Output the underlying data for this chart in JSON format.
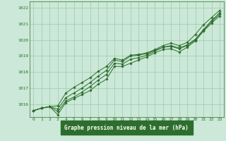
{
  "xlabel": "Graphe pression niveau de la mer (hPa)",
  "xlim": [
    -0.5,
    23.5
  ],
  "ylim": [
    1015.2,
    1022.4
  ],
  "yticks": [
    1016,
    1017,
    1018,
    1019,
    1020,
    1021,
    1022
  ],
  "xticks": [
    0,
    1,
    2,
    3,
    4,
    5,
    6,
    7,
    8,
    9,
    10,
    11,
    12,
    13,
    14,
    15,
    16,
    17,
    18,
    19,
    20,
    21,
    22,
    23
  ],
  "bg_color": "#cce8d8",
  "grid_color": "#99ccaa",
  "line_color": "#2d6e2d",
  "label_bg": "#2d6e2d",
  "series": [
    [
      1015.6,
      1015.75,
      1015.85,
      1015.35,
      1016.1,
      1016.35,
      1016.6,
      1016.85,
      1017.25,
      1017.55,
      1018.35,
      1018.35,
      1018.55,
      1018.75,
      1018.95,
      1019.2,
      1019.4,
      1019.45,
      1019.25,
      1019.55,
      1019.95,
      1020.55,
      1021.05,
      1021.5
    ],
    [
      1015.6,
      1015.75,
      1015.85,
      1015.55,
      1016.2,
      1016.45,
      1016.75,
      1017.1,
      1017.5,
      1017.85,
      1018.55,
      1018.5,
      1018.8,
      1018.9,
      1019.05,
      1019.3,
      1019.55,
      1019.6,
      1019.45,
      1019.65,
      1020.0,
      1020.6,
      1021.15,
      1021.6
    ],
    [
      1015.6,
      1015.75,
      1015.85,
      1015.7,
      1016.4,
      1016.7,
      1017.0,
      1017.35,
      1017.75,
      1018.1,
      1018.75,
      1018.65,
      1019.0,
      1019.05,
      1019.15,
      1019.35,
      1019.55,
      1019.65,
      1019.5,
      1019.7,
      1020.05,
      1020.65,
      1021.2,
      1021.7
    ],
    [
      1015.6,
      1015.75,
      1015.85,
      1015.9,
      1016.7,
      1017.05,
      1017.35,
      1017.65,
      1018.05,
      1018.35,
      1018.85,
      1018.75,
      1019.05,
      1019.1,
      1019.2,
      1019.4,
      1019.65,
      1019.8,
      1019.65,
      1019.85,
      1020.35,
      1020.95,
      1021.4,
      1021.85
    ]
  ]
}
